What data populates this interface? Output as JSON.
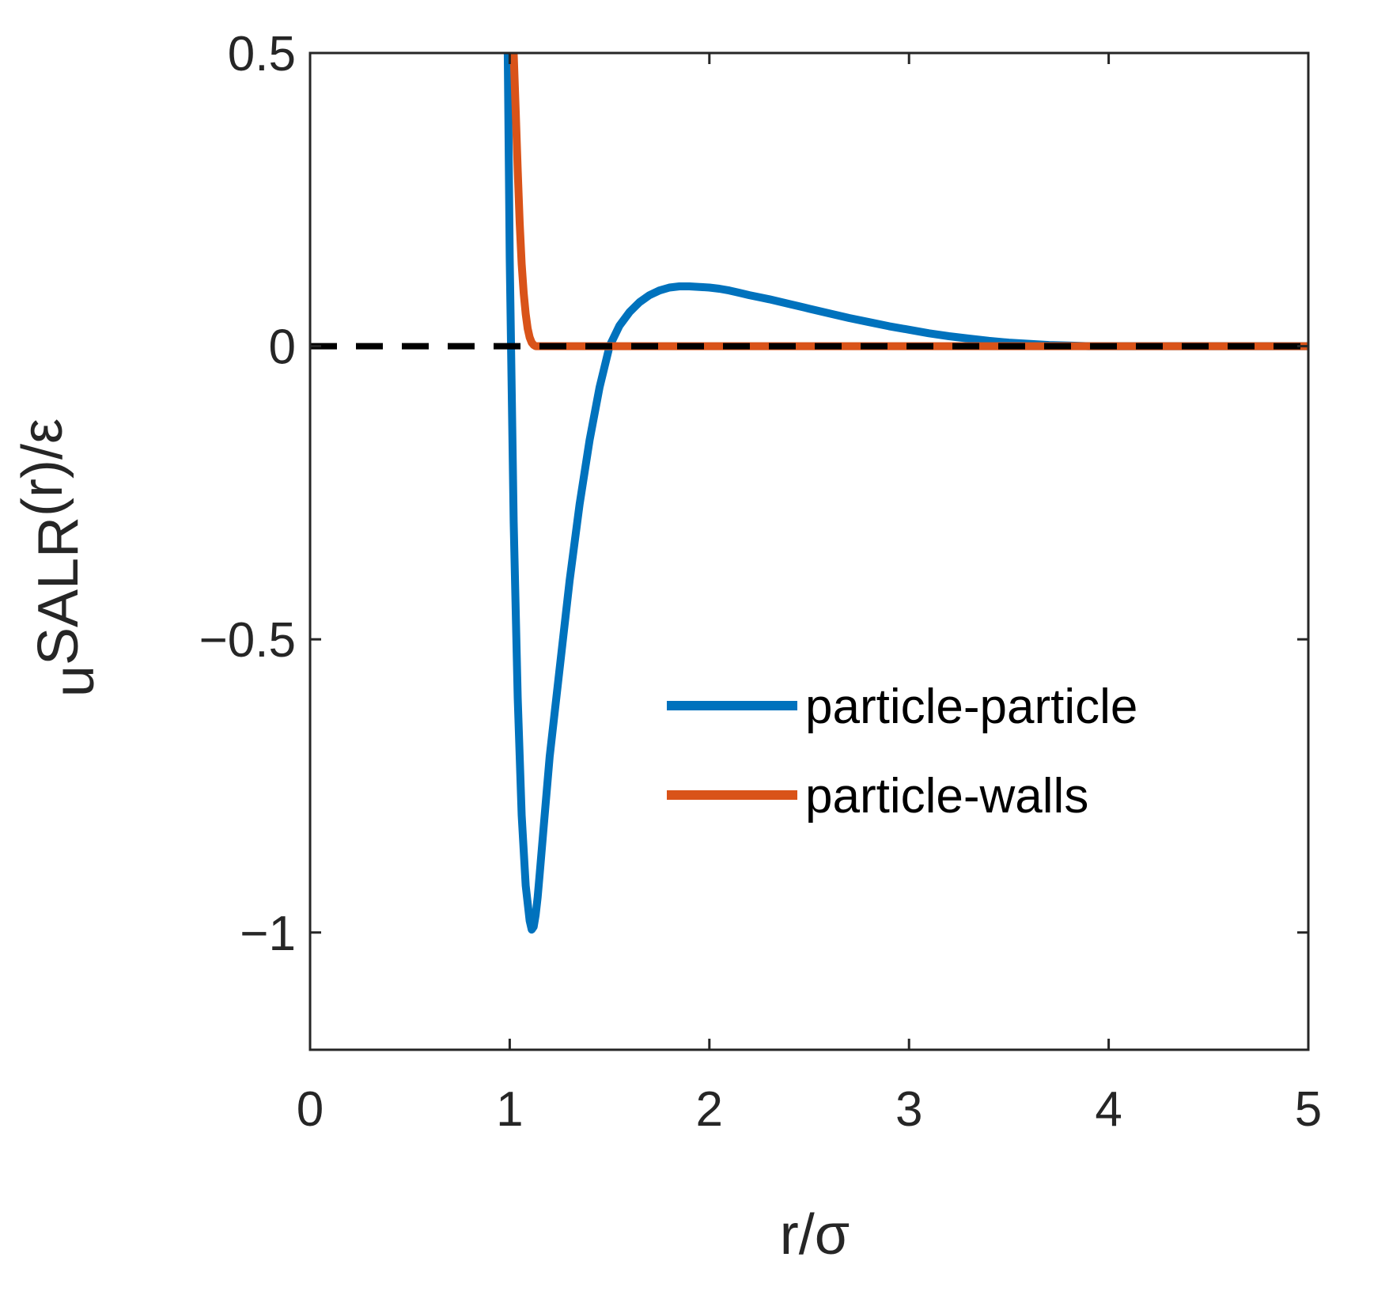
{
  "chart_data": {
    "type": "line",
    "title": "",
    "xlabel": "r/σ",
    "ylabel": {
      "base": "u",
      "subscript": "SALR",
      "suffix": "(r)/ε"
    },
    "xlim": [
      0,
      5
    ],
    "ylim": [
      -1.2,
      0.5
    ],
    "xticks": [
      0,
      1,
      2,
      3,
      4,
      5
    ],
    "xtick_labels": [
      "0",
      "1",
      "2",
      "3",
      "4",
      "5"
    ],
    "yticks": [
      0.5,
      0,
      -0.5,
      -1
    ],
    "ytick_labels": [
      "0.5",
      "0",
      "−0.5",
      "−1"
    ],
    "grid": false,
    "legend_position": "middle-right",
    "reference_line": {
      "y": 0,
      "style": "dashed",
      "color": "#000000"
    },
    "series": [
      {
        "name": "particle-particle",
        "color": "#0072BD",
        "x": [
          0.99,
          1.0,
          1.02,
          1.04,
          1.06,
          1.08,
          1.1,
          1.11,
          1.12,
          1.13,
          1.14,
          1.15,
          1.17,
          1.2,
          1.25,
          1.3,
          1.35,
          1.4,
          1.45,
          1.5,
          1.55,
          1.6,
          1.65,
          1.7,
          1.75,
          1.8,
          1.85,
          1.9,
          1.95,
          2.0,
          2.05,
          2.1,
          2.15,
          2.2,
          2.3,
          2.4,
          2.5,
          2.6,
          2.7,
          2.8,
          2.9,
          3.0,
          3.1,
          3.2,
          3.3,
          3.4,
          3.5,
          3.6,
          3.7,
          3.8,
          3.9,
          4.0,
          4.5,
          5.0
        ],
        "y": [
          0.5,
          0.15,
          -0.3,
          -0.6,
          -0.8,
          -0.92,
          -0.98,
          -0.995,
          -0.99,
          -0.97,
          -0.94,
          -0.9,
          -0.82,
          -0.7,
          -0.55,
          -0.4,
          -0.27,
          -0.16,
          -0.07,
          0.0,
          0.035,
          0.058,
          0.075,
          0.087,
          0.095,
          0.1,
          0.102,
          0.102,
          0.101,
          0.1,
          0.098,
          0.095,
          0.091,
          0.087,
          0.08,
          0.072,
          0.064,
          0.056,
          0.048,
          0.041,
          0.034,
          0.028,
          0.022,
          0.017,
          0.013,
          0.009,
          0.006,
          0.004,
          0.002,
          0.001,
          0.0,
          0.0,
          0.0,
          0.0
        ]
      },
      {
        "name": "particle-walls",
        "color": "#D95319",
        "x": [
          1.02,
          1.03,
          1.04,
          1.05,
          1.06,
          1.07,
          1.08,
          1.09,
          1.1,
          1.11,
          1.12,
          1.13,
          1.15,
          1.2,
          2.0,
          3.0,
          4.0,
          5.0
        ],
        "y": [
          0.5,
          0.4,
          0.3,
          0.21,
          0.14,
          0.09,
          0.055,
          0.03,
          0.015,
          0.006,
          0.002,
          0.0,
          0.0,
          0.0,
          0.0,
          0.0,
          0.0,
          0.0
        ]
      }
    ]
  }
}
